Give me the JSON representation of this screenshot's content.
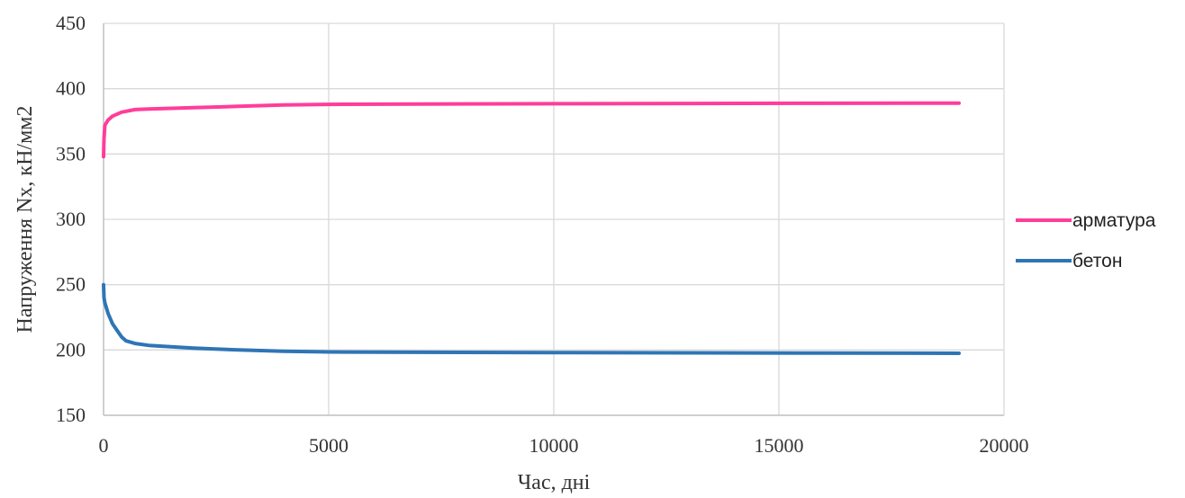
{
  "chart_data": {
    "type": "line",
    "xlabel": "Час, дні",
    "ylabel": "Напруження Nx, кН/мм2",
    "xlim": [
      0,
      20000
    ],
    "ylim": [
      150,
      450
    ],
    "xticks": [
      0,
      5000,
      10000,
      15000,
      20000
    ],
    "yticks": [
      150,
      200,
      250,
      300,
      350,
      400,
      450
    ],
    "grid": true,
    "legend_position": "right",
    "series": [
      {
        "name": "арматура",
        "color": "#ff3d9a",
        "x": [
          0,
          10,
          30,
          100,
          200,
          400,
          700,
          1000,
          2000,
          3000,
          4000,
          5000,
          7000,
          10000,
          13000,
          16000,
          19000
        ],
        "y": [
          348,
          362,
          372,
          376,
          379,
          382,
          384,
          384.5,
          385.5,
          386.5,
          387.5,
          388,
          388.3,
          388.5,
          388.7,
          388.8,
          389
        ]
      },
      {
        "name": "бетон",
        "color": "#2e75b6",
        "x": [
          0,
          10,
          30,
          100,
          200,
          400,
          500,
          700,
          1000,
          2000,
          3000,
          4000,
          5000,
          7000,
          10000,
          13000,
          16000,
          19000
        ],
        "y": [
          250,
          240,
          236,
          228,
          220,
          210,
          207,
          205,
          203.5,
          201.5,
          200,
          199,
          198.5,
          198.2,
          198,
          197.8,
          197.6,
          197.5
        ]
      }
    ]
  }
}
